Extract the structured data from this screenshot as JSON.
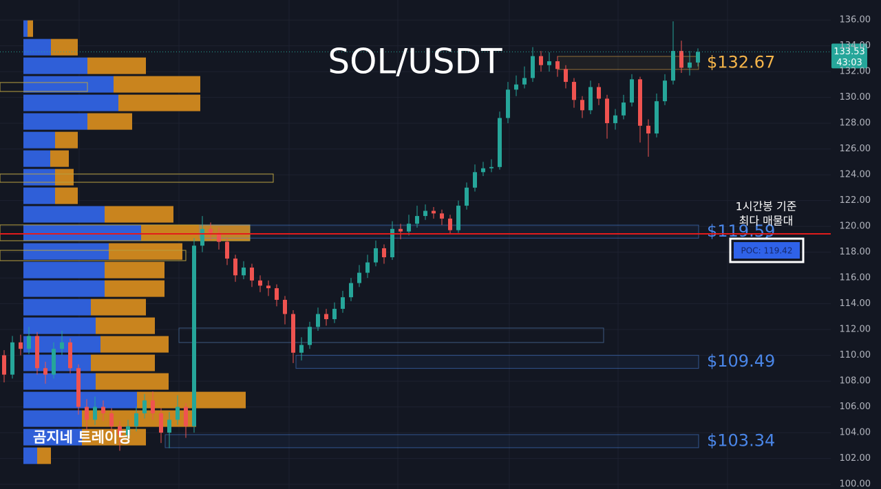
{
  "chart_data": {
    "type": "candlestick",
    "title": "SOL/USDT",
    "ylim": [
      99.63,
      137.55
    ],
    "yticks": [
      {
        "value": 100,
        "label": "100.00"
      },
      {
        "value": 102,
        "label": "102.00"
      },
      {
        "value": 104,
        "label": "104.00"
      },
      {
        "value": 106,
        "label": "106.00"
      },
      {
        "value": 108,
        "label": "108.00"
      },
      {
        "value": 110,
        "label": "110.00"
      },
      {
        "value": 112,
        "label": "112.00"
      },
      {
        "value": 114,
        "label": "114.00"
      },
      {
        "value": 116,
        "label": "116.00"
      },
      {
        "value": 118,
        "label": "118.00"
      },
      {
        "value": 120,
        "label": "120.00"
      },
      {
        "value": 122,
        "label": "122.00"
      },
      {
        "value": 124,
        "label": "124.00"
      },
      {
        "value": 126,
        "label": "126.00"
      },
      {
        "value": 128,
        "label": "128.00"
      },
      {
        "value": 130,
        "label": "130.00"
      },
      {
        "value": 132,
        "label": "132.00"
      },
      {
        "value": 134,
        "label": "134.00"
      },
      {
        "value": 136,
        "label": "136.00"
      }
    ],
    "grid": true,
    "up_color": "#26a69a",
    "down_color": "#ef5350",
    "candles": {
      "open": [
        110,
        108.5,
        111,
        110.5,
        111.5,
        109,
        108.5,
        110.5,
        111,
        109,
        106,
        105,
        106,
        105.5,
        104.5,
        103.8,
        104.5,
        105.5,
        106.5,
        105.5,
        104,
        105,
        106,
        104.5,
        118.5,
        119.8,
        119.5,
        118.8,
        117.5,
        116.2,
        116.8,
        115.8,
        115.4,
        115.2,
        114.3,
        113.2,
        110.2,
        110.8,
        112.2,
        113.2,
        112.8,
        113.6,
        114.5,
        115.6,
        116.4,
        117.2,
        118.3,
        117.6,
        119.8,
        119.6,
        120.2,
        120.8,
        121.2,
        121.0,
        120.6,
        119.7,
        121.6,
        123.0,
        124.2,
        124.5,
        124.6,
        128.4,
        130.6,
        131.0,
        131.5,
        133.2,
        132.5,
        132.8,
        132.2,
        131.2,
        129.8,
        129.0,
        130.8,
        129.9,
        128.0,
        128.6,
        129.6,
        131.4,
        127.8,
        127.2,
        129.7,
        131.3,
        133.6,
        132.3,
        132.7
      ],
      "high": [
        110.4,
        111.5,
        111.6,
        112.2,
        111.8,
        109.5,
        111.0,
        111.9,
        111.3,
        109.3,
        106.6,
        106.8,
        106.5,
        105.9,
        104.9,
        105.0,
        106.0,
        107.0,
        107.2,
        105.9,
        105.6,
        106.9,
        106.3,
        119.1,
        120.8,
        120.3,
        119.9,
        119.1,
        117.8,
        117.3,
        117.1,
        116.2,
        115.8,
        115.5,
        114.6,
        113.5,
        111.4,
        112.6,
        113.7,
        113.6,
        114.1,
        115.0,
        116.0,
        117.0,
        117.8,
        118.9,
        118.6,
        120.4,
        120.2,
        120.9,
        121.6,
        121.7,
        121.5,
        121.3,
        120.9,
        122.0,
        123.4,
        124.8,
        125.0,
        125.2,
        128.9,
        131.2,
        131.7,
        132.4,
        133.9,
        133.6,
        133.5,
        133.2,
        132.5,
        131.5,
        130.1,
        131.3,
        131.1,
        130.2,
        129.1,
        130.2,
        131.8,
        131.6,
        128.3,
        130.3,
        131.8,
        135.9,
        134.4,
        133.6,
        133.8
      ],
      "low": [
        107.9,
        108.2,
        110.0,
        110.1,
        108.5,
        107.8,
        108.2,
        110.0,
        108.6,
        105.4,
        104.2,
        104.6,
        104.9,
        103.8,
        102.6,
        103.2,
        104.1,
        105.1,
        105.0,
        103.2,
        102.8,
        104.6,
        103.6,
        104.0,
        118.0,
        118.9,
        118.2,
        117.0,
        115.7,
        115.9,
        115.3,
        114.9,
        114.6,
        113.8,
        112.4,
        109.4,
        109.6,
        110.5,
        111.9,
        112.3,
        112.5,
        113.3,
        114.2,
        115.3,
        116.0,
        116.9,
        117.1,
        117.4,
        119.0,
        119.3,
        119.9,
        120.5,
        120.6,
        120.1,
        119.4,
        119.5,
        121.3,
        122.7,
        123.9,
        124.2,
        124.4,
        128.0,
        130.1,
        130.7,
        131.2,
        132.0,
        132.0,
        131.6,
        130.7,
        129.2,
        128.4,
        128.7,
        129.4,
        126.8,
        127.5,
        128.3,
        129.3,
        126.5,
        125.4,
        126.9,
        129.4,
        131.0,
        131.9,
        131.7,
        132.4
      ],
      "close": [
        108.5,
        111,
        110.5,
        111.5,
        109,
        108.5,
        110.5,
        111,
        109,
        106,
        105,
        106,
        105.5,
        104.5,
        103.8,
        104.5,
        105.5,
        106.5,
        105.5,
        104,
        105,
        106,
        104.5,
        118.5,
        119.8,
        119.5,
        118.8,
        117.5,
        116.2,
        116.8,
        115.8,
        115.4,
        115.2,
        114.3,
        113.2,
        110.2,
        110.8,
        112.2,
        113.2,
        112.8,
        113.6,
        114.5,
        115.6,
        116.4,
        117.2,
        118.3,
        117.6,
        119.8,
        119.6,
        120.2,
        120.8,
        121.2,
        121.0,
        120.6,
        119.7,
        121.6,
        123.0,
        124.2,
        124.5,
        124.6,
        128.4,
        130.6,
        131.0,
        131.5,
        133.2,
        132.5,
        132.8,
        132.2,
        131.2,
        129.8,
        129.0,
        130.8,
        129.9,
        128.0,
        128.6,
        129.6,
        131.4,
        127.8,
        127.2,
        129.7,
        131.3,
        133.6,
        132.3,
        132.7,
        133.53
      ]
    },
    "last_price": 133.53,
    "countdown": "43:03",
    "volume_profile": {
      "bins": [
        101.49,
        102.93,
        104.37,
        105.81,
        107.25,
        108.69,
        110.13,
        111.57,
        113.01,
        114.45,
        115.89,
        117.33,
        118.77,
        120.21,
        121.65,
        123.09,
        124.53,
        125.97,
        127.41,
        128.85,
        130.29,
        131.73,
        133.17,
        134.61,
        136.05
      ],
      "buy": [
        20,
        85,
        85,
        165,
        105,
        98,
        112,
        105,
        98,
        118,
        118,
        124,
        171,
        118,
        46,
        46,
        39,
        46,
        93,
        138,
        131,
        93,
        40,
        6
      ],
      "sell": [
        20,
        93,
        166,
        158,
        106,
        93,
        99,
        86,
        80,
        87,
        87,
        107,
        158,
        100,
        33,
        27,
        27,
        33,
        65,
        119,
        126,
        85,
        39,
        8
      ],
      "buy_color": "#2f5fd8",
      "sell_color": "#c9841e"
    },
    "levels": [
      {
        "label": "$132.67",
        "value": 132.67,
        "color": "#f5b54a"
      },
      {
        "label": "$119.59",
        "value": 119.59,
        "color": "#4a86e8"
      },
      {
        "label": "$109.49",
        "value": 109.49,
        "color": "#4a86e8"
      },
      {
        "label": "$103.34",
        "value": 103.34,
        "color": "#4a86e8"
      }
    ],
    "poc": {
      "label": "POC: 119.42",
      "value": 119.42
    },
    "annotations": [
      "1시간봉 기준",
      "최다 매물대"
    ],
    "watermark": "곰지네 트레이딩"
  }
}
